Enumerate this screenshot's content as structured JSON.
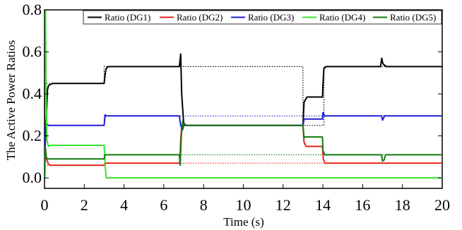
{
  "chart_data": {
    "type": "line",
    "xlabel": "Time (s)",
    "ylabel": "The Active Power Ratios",
    "xlim": [
      0,
      20
    ],
    "ylim": [
      -0.05,
      0.8
    ],
    "x_ticks": [
      "0",
      "2",
      "4",
      "6",
      "8",
      "10",
      "12",
      "14",
      "16",
      "18",
      "20"
    ],
    "y_ticks": [
      "0.0",
      "0.2",
      "0.4",
      "0.6",
      "0.8"
    ],
    "grid": false,
    "legend_position": "top",
    "series": [
      {
        "name": "Ratio (DG1)",
        "color": "#000000",
        "x": [
          0.0,
          0.05,
          0.1,
          0.15,
          0.2,
          0.3,
          0.4,
          0.6,
          3.0,
          3.06,
          3.1,
          3.2,
          6.78,
          6.85,
          6.9,
          7.0,
          7.1,
          10.0,
          13.0,
          13.05,
          13.2,
          13.98,
          14.0,
          14.05,
          14.15,
          16.9,
          16.96,
          17.0,
          17.05,
          17.2,
          20.0
        ],
        "y": [
          0.0,
          0.2,
          0.3,
          0.42,
          0.44,
          0.445,
          0.45,
          0.45,
          0.45,
          0.5,
          0.52,
          0.53,
          0.53,
          0.59,
          0.4,
          0.26,
          0.25,
          0.25,
          0.25,
          0.36,
          0.385,
          0.385,
          0.44,
          0.52,
          0.53,
          0.53,
          0.57,
          0.55,
          0.54,
          0.53,
          0.53
        ]
      },
      {
        "name": "Ratio (DG2)",
        "color": "#e8211c",
        "x": [
          0.0,
          0.05,
          0.1,
          0.2,
          0.3,
          3.0,
          3.05,
          3.1,
          6.8,
          6.85,
          6.9,
          7.0,
          13.0,
          13.05,
          13.15,
          13.98,
          14.02,
          14.1,
          20.0
        ],
        "y": [
          0.0,
          0.14,
          0.09,
          0.065,
          0.06,
          0.06,
          0.07,
          0.07,
          0.07,
          0.18,
          0.25,
          0.25,
          0.25,
          0.17,
          0.15,
          0.15,
          0.09,
          0.07,
          0.07
        ]
      },
      {
        "name": "Ratio (DG3)",
        "color": "#1f1fd8",
        "x": [
          0.0,
          0.04,
          0.08,
          0.2,
          0.3,
          3.0,
          3.05,
          3.1,
          6.78,
          6.85,
          6.95,
          7.0,
          13.0,
          13.05,
          13.1,
          13.98,
          14.0,
          14.1,
          16.95,
          17.0,
          17.1,
          20.0
        ],
        "y": [
          0.0,
          0.2,
          0.26,
          0.25,
          0.25,
          0.25,
          0.3,
          0.295,
          0.295,
          0.25,
          0.23,
          0.25,
          0.25,
          0.28,
          0.28,
          0.28,
          0.31,
          0.295,
          0.295,
          0.275,
          0.295,
          0.295
        ]
      },
      {
        "name": "Ratio (DG4)",
        "color": "#35e52c",
        "x": [
          0.0,
          0.05,
          0.08,
          0.12,
          0.2,
          0.3,
          3.0,
          3.05,
          3.1,
          20.0
        ],
        "y": [
          0.8,
          0.8,
          0.4,
          0.18,
          0.15,
          0.155,
          0.155,
          0.06,
          0.0,
          0.0
        ]
      },
      {
        "name": "Ratio (DG5)",
        "color": "#127a12",
        "x": [
          0.0,
          0.04,
          0.08,
          0.15,
          0.3,
          3.0,
          3.05,
          3.1,
          6.78,
          6.82,
          6.88,
          6.95,
          7.0,
          13.0,
          13.05,
          13.1,
          13.98,
          14.0,
          14.1,
          16.95,
          17.0,
          17.08,
          17.15,
          20.0
        ],
        "y": [
          0.0,
          0.15,
          0.1,
          0.09,
          0.09,
          0.09,
          0.11,
          0.11,
          0.11,
          0.06,
          0.2,
          0.27,
          0.25,
          0.25,
          0.19,
          0.195,
          0.195,
          0.13,
          0.11,
          0.11,
          0.08,
          0.085,
          0.11,
          0.11
        ]
      }
    ],
    "reference_lines": [
      {
        "color": "#000000",
        "x": [
          0.0,
          0.02,
          0.02,
          3.0,
          3.0,
          3.0,
          6.8,
          6.8,
          13.0,
          13.0,
          14.05,
          14.05,
          20.0
        ],
        "y": [
          0.0,
          0.0,
          0.45,
          0.45,
          0.45,
          0.53,
          0.53,
          0.53,
          0.53,
          0.25,
          0.25,
          0.53,
          0.53
        ]
      },
      {
        "color": "#1f1fd8",
        "x": [
          0.0,
          0.02,
          0.02,
          3.0,
          3.0,
          6.8,
          6.8,
          13.0,
          13.0,
          14.05,
          14.05,
          20.0
        ],
        "y": [
          0.0,
          0.0,
          0.25,
          0.25,
          0.295,
          0.295,
          0.295,
          0.295,
          0.295,
          0.295,
          0.295,
          0.295
        ]
      },
      {
        "color": "#e8211c",
        "x": [
          0.0,
          0.02,
          0.02,
          3.0,
          3.0,
          6.8,
          6.8,
          14.05,
          14.05,
          20.0
        ],
        "y": [
          0.0,
          0.0,
          0.06,
          0.06,
          0.07,
          0.07,
          0.07,
          0.07,
          0.07,
          0.07
        ]
      },
      {
        "color": "#127a12",
        "x": [
          0.0,
          0.02,
          0.02,
          3.0,
          3.0,
          6.8,
          6.8,
          14.05,
          14.05,
          20.0
        ],
        "y": [
          0.0,
          0.0,
          0.09,
          0.09,
          0.11,
          0.11,
          0.11,
          0.11,
          0.11,
          0.11
        ]
      }
    ]
  }
}
